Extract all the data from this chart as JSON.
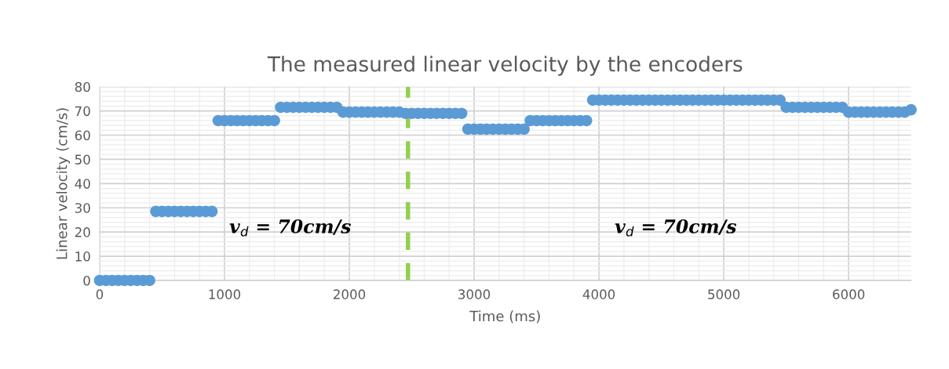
{
  "chart_data": {
    "type": "scatter",
    "title": "The measured linear velocity by the encoders",
    "xlabel": "Time (ms)",
    "ylabel": "Linear velocity (cm/s)",
    "x": [
      0,
      50,
      100,
      150,
      200,
      250,
      300,
      350,
      400,
      450,
      500,
      550,
      600,
      650,
      700,
      750,
      800,
      850,
      900,
      950,
      1000,
      1050,
      1100,
      1150,
      1200,
      1250,
      1300,
      1350,
      1400,
      1450,
      1500,
      1550,
      1600,
      1650,
      1700,
      1750,
      1800,
      1850,
      1900,
      1950,
      2000,
      2050,
      2100,
      2150,
      2200,
      2250,
      2300,
      2350,
      2400,
      2450,
      2500,
      2550,
      2600,
      2650,
      2700,
      2750,
      2800,
      2850,
      2900,
      2950,
      3000,
      3050,
      3100,
      3150,
      3200,
      3250,
      3300,
      3350,
      3400,
      3450,
      3500,
      3550,
      3600,
      3650,
      3700,
      3750,
      3800,
      3850,
      3900,
      3950,
      4000,
      4050,
      4100,
      4150,
      4200,
      4250,
      4300,
      4350,
      4400,
      4450,
      4500,
      4550,
      4600,
      4650,
      4700,
      4750,
      4800,
      4850,
      4900,
      4950,
      5000,
      5050,
      5100,
      5150,
      5200,
      5250,
      5300,
      5350,
      5400,
      5450,
      5500,
      5550,
      5600,
      5650,
      5700,
      5750,
      5800,
      5850,
      5900,
      5950,
      6000,
      6050,
      6100,
      6150,
      6200,
      6250,
      6300,
      6350,
      6400,
      6450,
      6500
    ],
    "series": [
      {
        "color": "#5b9bd5",
        "values": [
          0,
          0,
          0,
          0,
          0,
          0,
          0,
          0,
          0,
          28.5,
          28.5,
          28.5,
          28.5,
          28.5,
          28.5,
          28.5,
          28.5,
          28.5,
          28.5,
          66,
          66,
          66,
          66,
          66,
          66,
          66,
          66,
          66,
          66,
          71.5,
          71.5,
          71.5,
          71.5,
          71.5,
          71.5,
          71.5,
          71.5,
          71.5,
          71.5,
          69.5,
          69.5,
          69.5,
          69.5,
          69.5,
          69.5,
          69.5,
          69.5,
          69.5,
          69.5,
          69,
          69,
          69,
          69,
          69,
          69,
          69,
          69,
          69,
          69,
          62.5,
          62.5,
          62.5,
          62.5,
          62.5,
          62.5,
          62.5,
          62.5,
          62.5,
          62.5,
          66,
          66,
          66,
          66,
          66,
          66,
          66,
          66,
          66,
          66,
          74.5,
          74.5,
          74.5,
          74.5,
          74.5,
          74.5,
          74.5,
          74.5,
          74.5,
          74.5,
          74.5,
          74.5,
          74.5,
          74.5,
          74.5,
          74.5,
          74.5,
          74.5,
          74.5,
          74.5,
          74.5,
          74.5,
          74.5,
          74.5,
          74.5,
          74.5,
          74.5,
          74.5,
          74.5,
          74.5,
          74.5,
          71.5,
          71.5,
          71.5,
          71.5,
          71.5,
          71.5,
          71.5,
          71.5,
          71.5,
          71.5,
          69.5,
          69.5,
          69.5,
          69.5,
          69.5,
          69.5,
          69.5,
          69.5,
          69.5,
          69.5,
          70.5
        ]
      }
    ],
    "xlim": [
      0,
      6500
    ],
    "xticks": [
      0,
      1000,
      2000,
      3000,
      4000,
      5000,
      6000
    ],
    "ylim": [
      0,
      80
    ],
    "yticks": [
      0,
      10,
      20,
      30,
      40,
      50,
      60,
      70,
      80
    ],
    "ref_lines": [
      {
        "axis": "x",
        "value": 2470,
        "color": "#92d050",
        "line_style": "dashed"
      }
    ],
    "annotations": [
      "v$_{d}$ = 70cm/s",
      "v$_{d}$ = 70cm/s"
    ],
    "grid": true,
    "marker": "circle",
    "legend": false
  }
}
